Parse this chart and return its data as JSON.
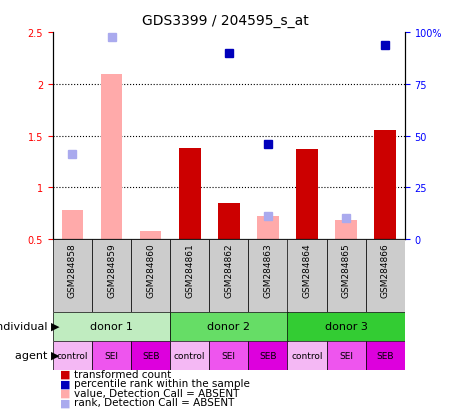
{
  "title": "GDS3399 / 204595_s_at",
  "samples": [
    "GSM284858",
    "GSM284859",
    "GSM284860",
    "GSM284861",
    "GSM284862",
    "GSM284863",
    "GSM284864",
    "GSM284865",
    "GSM284866"
  ],
  "red_bars": [
    null,
    null,
    null,
    1.38,
    0.85,
    null,
    1.37,
    null,
    1.55
  ],
  "pink_bars": [
    0.78,
    2.1,
    0.58,
    null,
    null,
    0.72,
    null,
    0.68,
    null
  ],
  "blue_squares_y": [
    null,
    null,
    null,
    null,
    2.3,
    1.42,
    null,
    null,
    2.38
  ],
  "light_blue_squares_y": [
    1.32,
    2.45,
    null,
    null,
    null,
    0.72,
    null,
    0.7,
    null
  ],
  "ylim": [
    0.5,
    2.5
  ],
  "yticks_left": [
    0.5,
    1.0,
    1.5,
    2.0,
    2.5
  ],
  "ytick_labels_left": [
    "0.5",
    "1",
    "1.5",
    "2",
    "2.5"
  ],
  "ytick_labels_right": [
    "0",
    "25",
    "50",
    "75",
    "100%"
  ],
  "donor_info": [
    {
      "label": "donor 1",
      "start": 0,
      "end": 3,
      "color": "#c0ecc0"
    },
    {
      "label": "donor 2",
      "start": 3,
      "end": 6,
      "color": "#66dd66"
    },
    {
      "label": "donor 3",
      "start": 6,
      "end": 9,
      "color": "#33cc33"
    }
  ],
  "agents": [
    "control",
    "SEI",
    "SEB",
    "control",
    "SEI",
    "SEB",
    "control",
    "SEI",
    "SEB"
  ],
  "agent_colors": [
    "#f4b8f4",
    "#ee55ee",
    "#dd00dd",
    "#f4b8f4",
    "#ee55ee",
    "#dd00dd",
    "#f4b8f4",
    "#ee55ee",
    "#dd00dd"
  ],
  "red_color": "#cc0000",
  "pink_color": "#ffaaaa",
  "blue_color": "#0000bb",
  "lightblue_color": "#aaaaee",
  "sample_bg": "#cccccc",
  "legend_items": [
    {
      "color": "#cc0000",
      "label": "transformed count"
    },
    {
      "color": "#0000bb",
      "label": "percentile rank within the sample"
    },
    {
      "color": "#ffaaaa",
      "label": "value, Detection Call = ABSENT"
    },
    {
      "color": "#aaaaee",
      "label": "rank, Detection Call = ABSENT"
    }
  ]
}
